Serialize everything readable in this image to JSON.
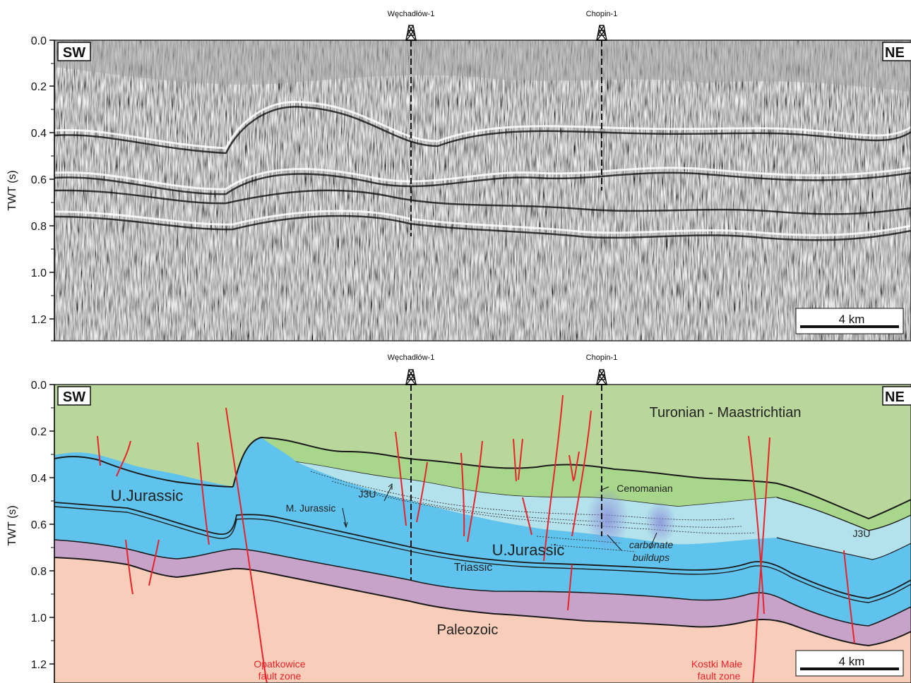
{
  "wells": {
    "w1": "Węchadłów-1",
    "w2": "Chopin-1"
  },
  "axis": {
    "label": "TWT (s)",
    "ticks": [
      "0.0",
      "0.2",
      "0.4",
      "0.6",
      "0.8",
      "1.0",
      "1.2"
    ]
  },
  "directions": {
    "left": "SW",
    "right": "NE"
  },
  "scale_bar": "4 km",
  "units": {
    "turonian": "Turonian - Maastrichtian",
    "cenomanian": "Cenomanian",
    "ujur_left": "U.Jurassic",
    "ujur_center": "U.Jurassic",
    "mjur": "M. Jurassic",
    "j3u_upper": "J3U",
    "j3u_right": "J3U",
    "triassic": "Triassic",
    "paleozoic": "Paleozoic",
    "carb_line1": "carbonate",
    "carb_line2": "buildups"
  },
  "faults": {
    "opat_line1": "Opatkowice",
    "opat_line2": "fault zone",
    "kostki_line1": "Kostki Małe",
    "kostki_line2": "fault zone"
  },
  "colors": {
    "turonian": "#b9d79b",
    "cenomanian": "#a8d68a",
    "j3u": "#b3e1ec",
    "ujurassic": "#5fc3ee",
    "triassic": "#c8a3c9",
    "paleozoic": "#f8cdb9",
    "fault": "#e8232a"
  }
}
